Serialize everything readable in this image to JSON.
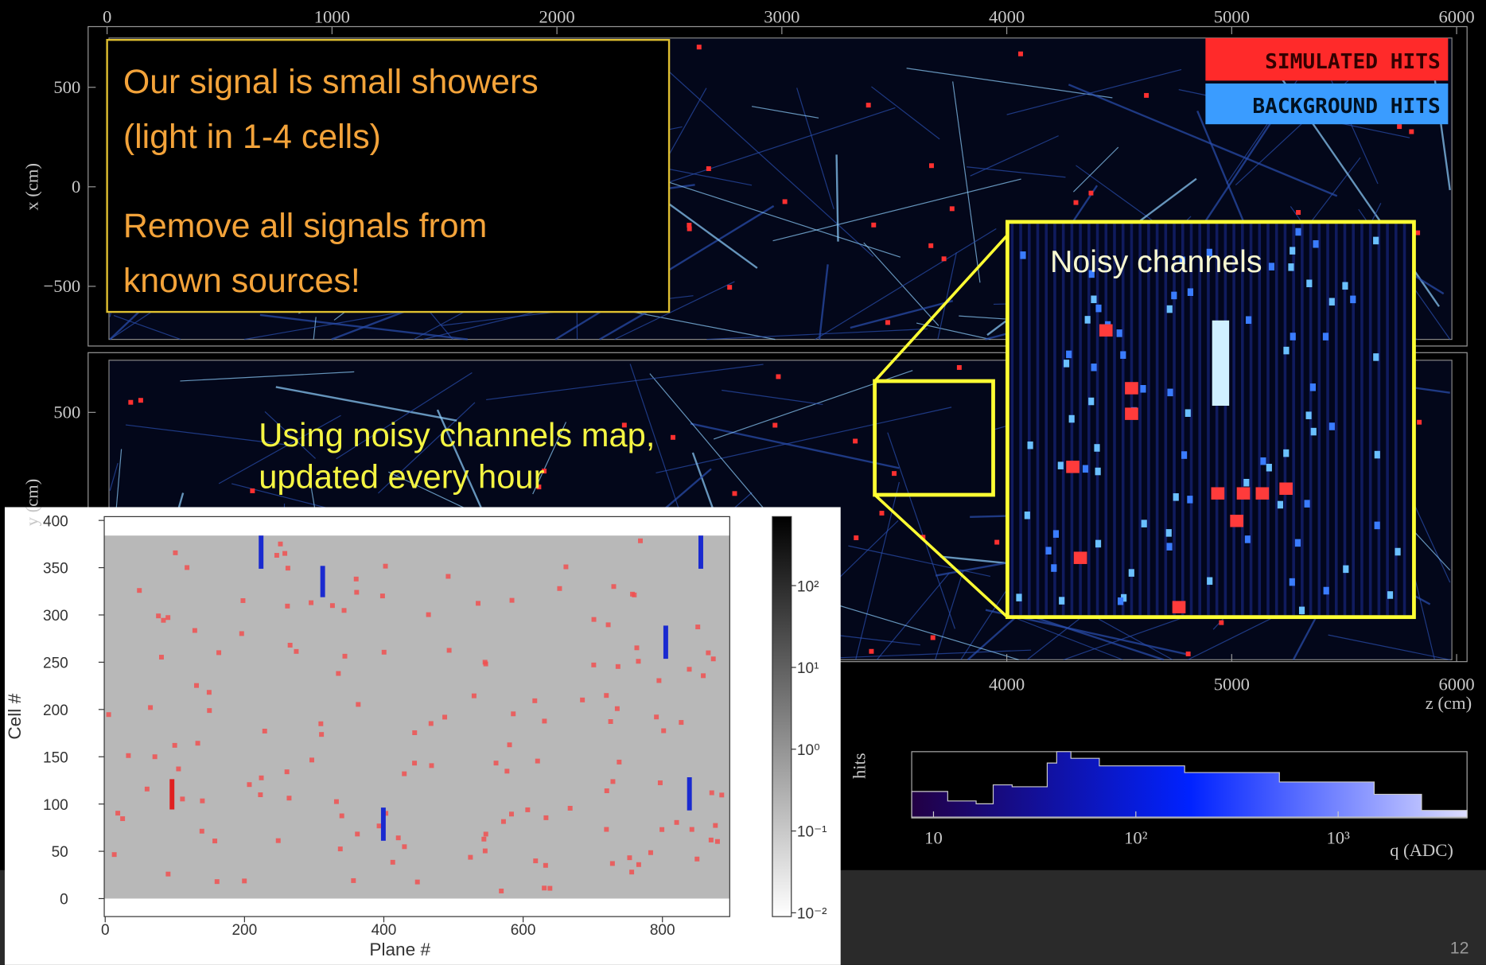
{
  "event_display": {
    "top_xticks": [
      0,
      1000,
      2000,
      3000,
      4000,
      5000,
      6000
    ],
    "top_ylabel": "x (cm)",
    "top_yticks": [
      500,
      0,
      {
        "value": -500,
        "label": "−500"
      }
    ],
    "bottom_ylabel": "y (cm)",
    "bottom_yticks": [
      500
    ],
    "bottom_xticks": [
      4000,
      5000,
      6000
    ],
    "xlabel": "z (cm)",
    "legend": [
      "SIMULATED HITS",
      "BACKGROUND HITS"
    ]
  },
  "histogram": {
    "ylabel": "hits",
    "xticks": [
      10,
      {
        "value": 100,
        "label": "10²"
      },
      {
        "value": 1000,
        "label": "10³"
      }
    ],
    "xlabel": "q (ADC)"
  },
  "callout": {
    "lines": [
      "Our signal is small showers",
      "(light in 1-4 cells)",
      "Remove all signals from",
      "known sources!"
    ]
  },
  "zoom": {
    "label": "Noisy channels"
  },
  "note": {
    "lines": [
      "Using noisy channels map,",
      "updated every hour"
    ]
  },
  "noise_map": {
    "ylabel": "Cell #",
    "xlabel": "Plane #",
    "yticks": [
      0,
      50,
      100,
      150,
      200,
      250,
      300,
      350,
      400
    ],
    "xticks": [
      0,
      200,
      400,
      600,
      800
    ],
    "colorbar_ticks": [
      {
        "value": 0.01,
        "label": "10⁻²"
      },
      {
        "value": 0.1,
        "label": "10⁻¹"
      },
      {
        "value": 1,
        "label": "10⁰"
      },
      {
        "value": 10,
        "label": "10¹"
      },
      {
        "value": 100,
        "label": "10²"
      }
    ]
  },
  "page_number": "12"
}
